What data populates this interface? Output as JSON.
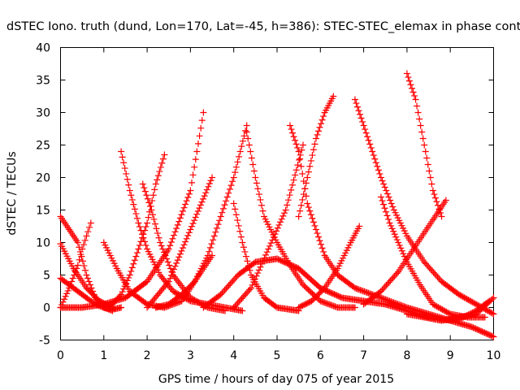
{
  "chart_data": {
    "type": "scatter",
    "title": "dSTEC Iono. truth (dund, Lon=170, Lat=-45, h=386): STEC-STEC_elemax in phase cont",
    "xlabel": "GPS time / hours of day 075 of year 2015",
    "ylabel": "dSTEC  / TECUs",
    "xlim": [
      0,
      10
    ],
    "ylim": [
      -5,
      40
    ],
    "xticks": [
      "0",
      "1",
      "2",
      "3",
      "4",
      "5",
      "6",
      "7",
      "8",
      "9",
      "10"
    ],
    "yticks": [
      "-5",
      "0",
      "5",
      "10",
      "15",
      "20",
      "25",
      "30",
      "35",
      "40"
    ],
    "marker": "+",
    "color": "#ff0000",
    "grid": false,
    "series": [
      {
        "x": [
          0.0,
          0.2,
          0.4,
          0.5,
          0.6,
          0.7
        ],
        "y": [
          0.0,
          3.0,
          6.5,
          9.0,
          11.0,
          13.0
        ]
      },
      {
        "x": [
          0.0,
          0.2,
          0.4,
          0.6,
          0.8,
          1.0,
          1.2,
          1.4
        ],
        "y": [
          14.0,
          12.0,
          10.0,
          5.0,
          1.5,
          0.0,
          -0.3,
          0.0
        ]
      },
      {
        "x": [
          0.0,
          0.3,
          0.6,
          0.9,
          1.2
        ],
        "y": [
          9.8,
          6.0,
          3.0,
          1.0,
          0.0
        ]
      },
      {
        "x": [
          0.0,
          0.4,
          0.8,
          1.2
        ],
        "y": [
          4.5,
          2.5,
          0.5,
          -0.5
        ]
      },
      {
        "x": [
          0.0,
          0.5,
          1.0,
          1.5,
          2.0,
          2.5,
          3.0,
          3.3
        ],
        "y": [
          0.0,
          0.0,
          0.5,
          1.5,
          4.0,
          9.0,
          18.0,
          30.0
        ]
      },
      {
        "x": [
          1.0,
          1.3,
          1.6,
          2.0,
          2.4,
          2.8,
          3.2,
          3.5
        ],
        "y": [
          10.0,
          6.0,
          2.5,
          0.5,
          0.0,
          1.0,
          5.0,
          8.0
        ]
      },
      {
        "x": [
          1.4,
          1.6,
          1.8,
          2.0,
          2.3,
          2.6,
          3.0,
          3.4,
          3.8,
          4.2
        ],
        "y": [
          24.0,
          18.0,
          13.0,
          9.0,
          5.0,
          2.5,
          1.0,
          0.5,
          0.0,
          -0.5
        ]
      },
      {
        "x": [
          1.0,
          1.2,
          1.4,
          1.6,
          1.8,
          2.0,
          2.2,
          2.4
        ],
        "y": [
          0.0,
          0.5,
          2.0,
          5.0,
          9.0,
          13.0,
          19.0,
          23.5
        ]
      },
      {
        "x": [
          1.9,
          2.1,
          2.3,
          2.6,
          3.0,
          3.4,
          3.8
        ],
        "y": [
          19.0,
          15.0,
          10.0,
          5.0,
          1.5,
          0.0,
          -0.5
        ]
      },
      {
        "x": [
          2.2,
          2.5,
          2.8,
          3.1,
          3.4,
          3.7,
          4.0,
          4.3
        ],
        "y": [
          0.0,
          0.5,
          2.0,
          4.0,
          8.0,
          14.0,
          20.0,
          28.0
        ]
      },
      {
        "x": [
          2.0,
          2.5,
          3.0,
          3.5
        ],
        "y": [
          0.0,
          4.0,
          12.0,
          20.0
        ]
      },
      {
        "x": [
          3.3,
          3.7,
          4.1,
          4.5,
          5.0,
          5.5,
          6.0,
          6.5,
          7.0,
          7.5,
          8.0,
          8.5,
          9.0
        ],
        "y": [
          0.0,
          2.0,
          5.0,
          7.0,
          7.5,
          6.0,
          3.0,
          1.5,
          1.0,
          0.5,
          -0.5,
          -1.5,
          -2.0
        ]
      },
      {
        "x": [
          4.3,
          4.5,
          4.7,
          5.0,
          5.3,
          5.6,
          6.0,
          6.4,
          6.8
        ],
        "y": [
          27.0,
          20.0,
          14.0,
          10.0,
          6.5,
          3.5,
          1.0,
          0.0,
          0.0
        ]
      },
      {
        "x": [
          4.0,
          4.2,
          4.4,
          4.7,
          5.0,
          5.5
        ],
        "y": [
          16.0,
          10.0,
          5.0,
          1.5,
          0.0,
          -0.5
        ]
      },
      {
        "x": [
          4.0,
          4.4,
          4.8,
          5.2,
          5.6
        ],
        "y": [
          0.0,
          3.0,
          9.0,
          15.0,
          25.0
        ]
      },
      {
        "x": [
          5.3,
          5.5,
          5.7,
          5.9,
          6.1,
          6.4,
          6.8,
          7.2,
          7.6,
          8.0,
          8.5,
          9.0,
          9.5,
          10.0
        ],
        "y": [
          28.0,
          24.0,
          16.0,
          12.0,
          8.0,
          5.0,
          3.0,
          2.0,
          1.0,
          0.0,
          -1.0,
          -2.0,
          -3.0,
          -4.5
        ]
      },
      {
        "x": [
          5.5,
          5.8,
          6.1,
          6.4,
          6.7,
          6.9
        ],
        "y": [
          0.0,
          1.0,
          3.0,
          6.0,
          10.0,
          12.5
        ]
      },
      {
        "x": [
          5.5,
          5.7,
          5.9,
          6.1,
          6.3
        ],
        "y": [
          14.0,
          20.0,
          26.0,
          30.0,
          32.5
        ]
      },
      {
        "x": [
          6.8,
          7.0,
          7.2,
          7.4,
          7.7,
          8.0,
          8.4,
          8.8,
          9.2,
          9.6,
          10.0
        ],
        "y": [
          32.0,
          28.0,
          24.0,
          20.0,
          15.0,
          11.0,
          7.0,
          4.0,
          2.0,
          0.5,
          -1.0
        ]
      },
      {
        "x": [
          7.4,
          7.6,
          7.8,
          8.0,
          8.3,
          8.6,
          9.0,
          9.4,
          9.8
        ],
        "y": [
          17.0,
          13.0,
          10.0,
          7.0,
          3.5,
          0.5,
          -1.0,
          -1.5,
          -1.5
        ]
      },
      {
        "x": [
          7.0,
          7.4,
          7.8,
          8.2,
          8.6,
          8.9
        ],
        "y": [
          0.5,
          2.5,
          5.5,
          9.5,
          13.5,
          16.5
        ]
      },
      {
        "x": [
          8.0,
          8.2,
          8.4,
          8.6,
          8.8
        ],
        "y": [
          36.0,
          32.0,
          25.0,
          18.0,
          14.0
        ]
      },
      {
        "x": [
          8.0,
          8.4,
          8.8,
          9.2,
          9.6,
          10.0
        ],
        "y": [
          -1.0,
          -1.5,
          -2.0,
          -1.5,
          -1.0,
          1.5
        ]
      },
      {
        "x": [
          9.0,
          9.3,
          9.6,
          9.9
        ],
        "y": [
          -2.0,
          -1.5,
          -0.5,
          1.0
        ]
      }
    ]
  }
}
